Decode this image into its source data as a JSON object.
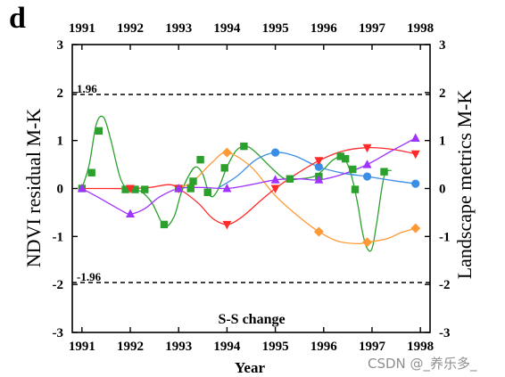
{
  "panel_label": "d",
  "watermark": "CSDN @_养乐多_",
  "chart_data": {
    "type": "line",
    "xlabel": "Year",
    "ylabel_left": "NDVI residual M-K",
    "ylabel_right": "Landscape metrics M-K",
    "annotation": "S-S change",
    "xlim": [
      1990.8,
      1998.2
    ],
    "ylim": [
      -3,
      3
    ],
    "x_ticks": [
      1991,
      1992,
      1993,
      1994,
      1995,
      1996,
      1997,
      1998
    ],
    "y_ticks": [
      -3,
      -2,
      -1,
      0,
      1,
      2,
      3
    ],
    "thresholds": [
      {
        "value": 1.96,
        "label": "1.96"
      },
      {
        "value": -1.96,
        "label": "-1.96"
      }
    ],
    "grid": false,
    "series": [
      {
        "color": "#2ca02c",
        "marker": "square",
        "x": [
          1991.0,
          1991.2,
          1991.35,
          1991.9,
          1992.1,
          1992.3,
          1992.7,
          1993.0,
          1993.25,
          1993.3,
          1993.45,
          1993.6,
          1993.95,
          1994.35,
          1995.3,
          1995.9,
          1996.35,
          1996.45,
          1996.6,
          1996.65,
          1997.25
        ],
        "y": [
          0.0,
          0.33,
          1.2,
          -0.02,
          -0.02,
          -0.02,
          -0.75,
          0.0,
          0.0,
          0.15,
          0.6,
          -0.08,
          0.43,
          0.88,
          0.2,
          0.25,
          0.67,
          0.62,
          0.4,
          -0.02,
          0.35
        ],
        "curve_x": [
          1991.0,
          1991.15,
          1991.3,
          1991.45,
          1991.6,
          1991.8,
          1992.0,
          1992.2,
          1992.45,
          1992.7,
          1992.9,
          1993.05,
          1993.2,
          1993.35,
          1993.5,
          1993.65,
          1993.8,
          1994.0,
          1994.2,
          1994.4,
          1994.6,
          1994.9,
          1995.2,
          1995.5,
          1995.8,
          1996.0,
          1996.2,
          1996.4,
          1996.55,
          1996.7,
          1996.8,
          1996.9,
          1997.0,
          1997.1,
          1997.25,
          1997.4
        ],
        "curve_y": [
          0.0,
          0.5,
          1.35,
          1.48,
          1.0,
          0.2,
          -0.05,
          -0.05,
          -0.3,
          -0.78,
          -0.6,
          -0.1,
          0.25,
          0.45,
          0.3,
          -0.15,
          -0.05,
          0.45,
          0.8,
          0.88,
          0.75,
          0.45,
          0.2,
          0.2,
          0.25,
          0.4,
          0.6,
          0.65,
          0.35,
          -0.3,
          -0.9,
          -1.25,
          -1.25,
          -0.7,
          0.25,
          0.38
        ]
      },
      {
        "color": "#3a8ee6",
        "marker": "circle",
        "x": [
          1995.0,
          1995.9,
          1996.9,
          1997.9
        ],
        "y": [
          0.75,
          0.45,
          0.25,
          0.1
        ],
        "curve_x": [
          1993.8,
          1994.2,
          1994.6,
          1995.0,
          1995.4,
          1995.9,
          1996.4,
          1996.9,
          1997.4,
          1997.9
        ],
        "curve_y": [
          0.0,
          0.25,
          0.6,
          0.75,
          0.68,
          0.45,
          0.32,
          0.25,
          0.17,
          0.1
        ]
      },
      {
        "color": "#ff9933",
        "marker": "diamond",
        "x": [
          1994.0,
          1995.9,
          1996.9,
          1997.9
        ],
        "y": [
          0.75,
          -0.9,
          -1.12,
          -0.83
        ],
        "curve_x": [
          1993.0,
          1993.3,
          1993.7,
          1994.0,
          1994.5,
          1995.0,
          1995.5,
          1995.9,
          1996.3,
          1996.7,
          1996.9,
          1997.3,
          1997.6,
          1997.9
        ],
        "curve_y": [
          0.0,
          0.15,
          0.55,
          0.75,
          0.45,
          -0.15,
          -0.6,
          -0.9,
          -1.1,
          -1.15,
          -1.12,
          -1.05,
          -0.92,
          -0.83
        ]
      },
      {
        "color": "#ff2a2a",
        "marker": "triangle-down",
        "x": [
          1992.0,
          1993.0,
          1994.0,
          1995.0,
          1995.9,
          1996.9,
          1997.9
        ],
        "y": [
          0.0,
          0.0,
          -0.75,
          0.0,
          0.58,
          0.85,
          0.72
        ],
        "curve_x": [
          1991.0,
          1991.5,
          1992.0,
          1992.4,
          1992.8,
          1993.0,
          1993.4,
          1993.7,
          1994.0,
          1994.3,
          1994.7,
          1995.0,
          1995.4,
          1995.9,
          1996.4,
          1996.9,
          1997.4,
          1997.9
        ],
        "curve_y": [
          0.0,
          0.0,
          0.0,
          0.02,
          0.08,
          0.0,
          -0.3,
          -0.62,
          -0.75,
          -0.6,
          -0.25,
          0.0,
          0.28,
          0.58,
          0.78,
          0.85,
          0.82,
          0.72
        ]
      },
      {
        "color": "#a033ff",
        "marker": "triangle-up",
        "x": [
          1991.0,
          1992.0,
          1993.0,
          1994.0,
          1995.0,
          1995.9,
          1996.9,
          1997.9
        ],
        "y": [
          0.0,
          -0.53,
          0.0,
          0.0,
          0.18,
          0.18,
          0.5,
          1.05
        ],
        "curve_x": [
          1991.0,
          1991.4,
          1991.8,
          1992.0,
          1992.3,
          1992.6,
          1993.0,
          1993.5,
          1994.0,
          1994.5,
          1995.0,
          1995.5,
          1995.9,
          1996.4,
          1996.9,
          1997.4,
          1997.9
        ],
        "curve_y": [
          0.0,
          -0.22,
          -0.45,
          -0.53,
          -0.42,
          -0.18,
          0.0,
          0.02,
          0.0,
          0.08,
          0.18,
          0.2,
          0.18,
          0.3,
          0.5,
          0.78,
          1.05
        ]
      }
    ]
  }
}
